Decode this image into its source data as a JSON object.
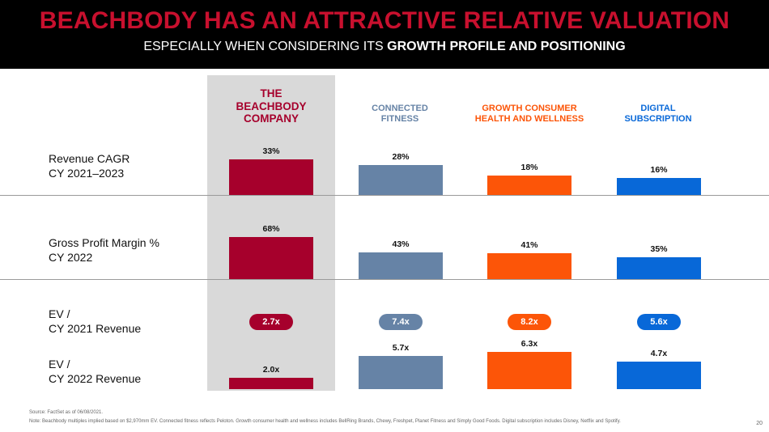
{
  "header": {
    "title": "BEACHBODY HAS AN ATTRACTIVE RELATIVE VALUATION",
    "subtitle_regular": "ESPECIALLY WHEN CONSIDERING ITS ",
    "subtitle_bold": "GROWTH PROFILE AND POSITIONING"
  },
  "columns": [
    {
      "lines": [
        "THE",
        "BEACHBODY",
        "COMPANY"
      ],
      "color": "#a6002c"
    },
    {
      "lines": [
        "CONNECTED",
        "FITNESS"
      ],
      "color": "#6683a6"
    },
    {
      "lines": [
        "GROWTH CONSUMER",
        "HEALTH AND WELLNESS"
      ],
      "color": "#fc5508"
    },
    {
      "lines": [
        "DIGITAL",
        "SUBSCRIPTION"
      ],
      "color": "#0868d8"
    }
  ],
  "rows": {
    "revenue_cagr": {
      "line1": "Revenue CAGR",
      "line2": "CY 2021–2023"
    },
    "gross_margin": {
      "line1": "Gross Profit Margin %",
      "line2": "CY 2022"
    },
    "ev_2021": {
      "line1": "EV /",
      "line2": "CY 2021 Revenue"
    },
    "ev_2022": {
      "line1": "EV /",
      "line2": "CY 2022 Revenue"
    }
  },
  "chart_data": {
    "type": "bar",
    "title": "BEACHBODY HAS AN ATTRACTIVE RELATIVE VALUATION",
    "categories": [
      "The Beachbody Company",
      "Connected Fitness",
      "Growth Consumer Health and Wellness",
      "Digital Subscription"
    ],
    "series": [
      {
        "name": "Revenue CAGR CY 2021–2023",
        "values": [
          33,
          28,
          18,
          16
        ],
        "labels": [
          "33%",
          "28%",
          "18%",
          "16%"
        ],
        "scale_max": 40
      },
      {
        "name": "Gross Profit Margin % CY 2022",
        "values": [
          68,
          43,
          41,
          35
        ],
        "labels": [
          "68%",
          "43%",
          "41%",
          "35%"
        ],
        "scale_max": 78
      },
      {
        "name": "EV / CY 2021 Revenue",
        "values": [
          2.7,
          7.4,
          8.2,
          5.6
        ],
        "labels": [
          "2.7x",
          "7.4x",
          "8.2x",
          "5.6x"
        ],
        "display": "pill"
      },
      {
        "name": "EV / CY 2022 Revenue",
        "values": [
          2.0,
          5.7,
          6.3,
          4.7
        ],
        "labels": [
          "2.0x",
          "5.7x",
          "6.3x",
          "4.7x"
        ],
        "scale_max": 6.9
      }
    ]
  },
  "footer": {
    "source": "Source: FactSet as of 06/08/2021.",
    "note": "Note: Beachbody multiples implied based on $2,970mm EV. Connected fitness reflects Peloton. Growth consumer health and wellness includes BellRing Brands, Chewy, Freshpet, Planet Fitness and Simply Good Foods. Digital subscription includes Disney, Netflix and Spotify.",
    "page_number": "20"
  }
}
